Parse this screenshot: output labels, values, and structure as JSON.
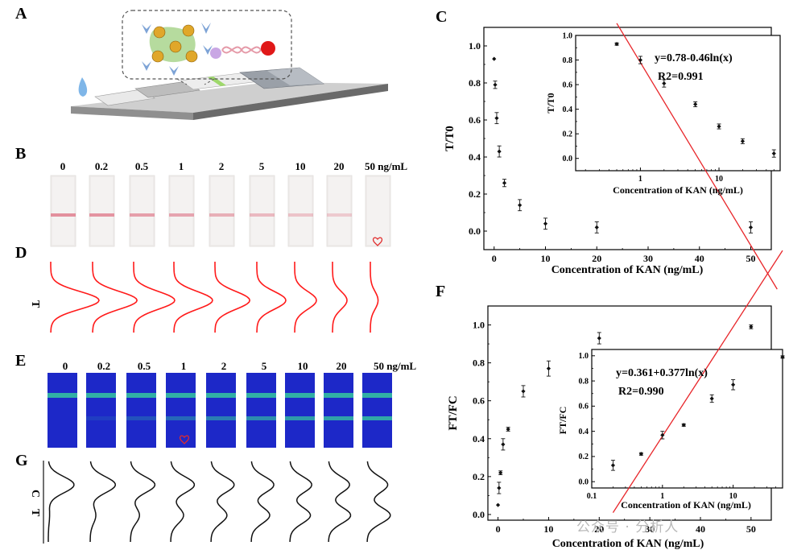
{
  "panels": {
    "A": "A",
    "B": "B",
    "C": "C",
    "D": "D",
    "E": "E",
    "F": "F",
    "G": "G"
  },
  "strip_concentrations": [
    "0",
    "0.2",
    "0.5",
    "1",
    "2",
    "5",
    "10",
    "20",
    "50 ng/mL"
  ],
  "line_labels": {
    "T": "T",
    "C": "C"
  },
  "watermark": "公众号 · 分析人",
  "colors": {
    "fit_line": "#e8262a",
    "red_test_line": "#e28a98",
    "strip_blue": "#1d28c8",
    "fluor_line": "#33b6a3",
    "peak_red": "#ff1a1a",
    "peak_black": "#111111"
  },
  "chart_data": [
    {
      "id": "C-main",
      "type": "scatter",
      "xlabel": "Concentration of KAN (ng/mL)",
      "ylabel": "T/T0",
      "xlim": [
        -2,
        54
      ],
      "ylim": [
        -0.1,
        1.1
      ],
      "xticks": [
        0,
        10,
        20,
        30,
        40,
        50
      ],
      "yticks": [
        0.0,
        0.2,
        0.4,
        0.6,
        0.8,
        1.0
      ],
      "x": [
        0,
        0.2,
        0.5,
        1,
        2,
        5,
        10,
        20,
        50
      ],
      "y": [
        0.93,
        0.79,
        0.61,
        0.43,
        0.26,
        0.14,
        0.04,
        0.02,
        0.02
      ],
      "err": [
        0.0,
        0.02,
        0.03,
        0.03,
        0.02,
        0.03,
        0.03,
        0.03,
        0.03
      ]
    },
    {
      "id": "C-inset",
      "type": "scatter",
      "scale_x": "log",
      "xlabel": "Concentration of KAN (ng/mL)",
      "ylabel": "T/T0",
      "xlim": [
        0.15,
        60
      ],
      "ylim": [
        -0.1,
        1.0
      ],
      "xticks": [
        1,
        10
      ],
      "yticks": [
        0.0,
        0.2,
        0.4,
        0.6,
        0.8,
        1.0
      ],
      "x": [
        0.5,
        1,
        2,
        5,
        10,
        20,
        50
      ],
      "y": [
        0.93,
        0.8,
        0.61,
        0.44,
        0.26,
        0.14,
        0.04
      ],
      "err": [
        0.01,
        0.03,
        0.03,
        0.02,
        0.02,
        0.02,
        0.03
      ],
      "annotation_eq": "y=0.78-0.46ln(x)",
      "annotation_r2": "R2=0.991",
      "fit": {
        "a": 0.78,
        "b": -0.46,
        "x_range": [
          0.5,
          55
        ]
      }
    },
    {
      "id": "F-main",
      "type": "scatter",
      "xlabel": "Concentration of KAN (ng/mL)",
      "ylabel": "FT/FC",
      "xlim": [
        -2,
        54
      ],
      "ylim": [
        -0.03,
        1.1
      ],
      "xticks": [
        0,
        10,
        20,
        30,
        40,
        50
      ],
      "yticks": [
        0.0,
        0.2,
        0.4,
        0.6,
        0.8,
        1.0
      ],
      "x": [
        0,
        0.2,
        0.5,
        1,
        2,
        5,
        10,
        20,
        50
      ],
      "y": [
        0.05,
        0.14,
        0.22,
        0.37,
        0.45,
        0.65,
        0.77,
        0.93,
        0.99
      ],
      "err": [
        0.0,
        0.03,
        0.01,
        0.03,
        0.01,
        0.03,
        0.04,
        0.03,
        0.01
      ]
    },
    {
      "id": "F-inset",
      "type": "scatter",
      "scale_x": "log",
      "xlabel": "Concentration of KAN (ng/mL)",
      "ylabel": "FT/FC",
      "xlim": [
        0.1,
        50
      ],
      "ylim": [
        -0.05,
        1.05
      ],
      "xticks": [
        0.1,
        1,
        10
      ],
      "yticks": [
        0.0,
        0.2,
        0.4,
        0.6,
        0.8,
        1.0
      ],
      "x": [
        0.2,
        0.5,
        1,
        2,
        5,
        10,
        50
      ],
      "y": [
        0.13,
        0.22,
        0.37,
        0.45,
        0.66,
        0.77,
        0.99
      ],
      "err": [
        0.04,
        0.01,
        0.03,
        0.01,
        0.03,
        0.04,
        0.01
      ],
      "annotation_eq": "y=0.361+0.377ln(x)",
      "annotation_r2": "R2=0.990",
      "fit": {
        "a": 0.361,
        "b": 0.377,
        "x_range": [
          0.2,
          50
        ]
      }
    }
  ],
  "peaks_D": {
    "type": "line",
    "heights": [
      1.0,
      0.92,
      0.85,
      0.8,
      0.72,
      0.6,
      0.45,
      0.3,
      0.16
    ]
  },
  "peaks_G": {
    "type": "line",
    "c_heights": [
      1.0,
      0.98,
      0.95,
      0.92,
      0.9,
      0.88,
      0.85,
      0.82,
      0.8
    ],
    "t_heights": [
      0.05,
      0.22,
      0.35,
      0.5,
      0.62,
      0.72,
      0.8,
      0.86,
      0.9
    ]
  }
}
